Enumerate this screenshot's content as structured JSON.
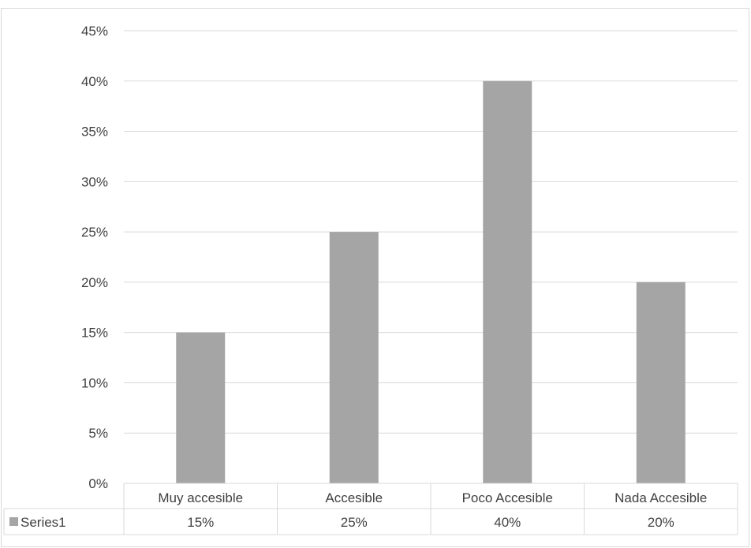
{
  "chart_data": {
    "type": "bar",
    "categories": [
      "Muy accesible",
      "Accesible",
      "Poco Accesible",
      "Nada Accesible"
    ],
    "series": [
      {
        "name": "Series1",
        "values": [
          0.15,
          0.25,
          0.4,
          0.2
        ],
        "value_labels": [
          "15%",
          "25%",
          "40%",
          "20%"
        ],
        "color": "#a5a5a5"
      }
    ],
    "ylim": [
      0,
      0.45
    ],
    "yticks": [
      0,
      0.05,
      0.1,
      0.15,
      0.2,
      0.25,
      0.3,
      0.35,
      0.4,
      0.45
    ],
    "ytick_labels": [
      "0%",
      "5%",
      "10%",
      "15%",
      "20%",
      "25%",
      "30%",
      "35%",
      "40%",
      "45%"
    ],
    "grid": true,
    "legend": "data-table",
    "colors": {
      "bar": "#a5a5a5",
      "grid": "#d9d9d9",
      "text": "#404040"
    }
  }
}
